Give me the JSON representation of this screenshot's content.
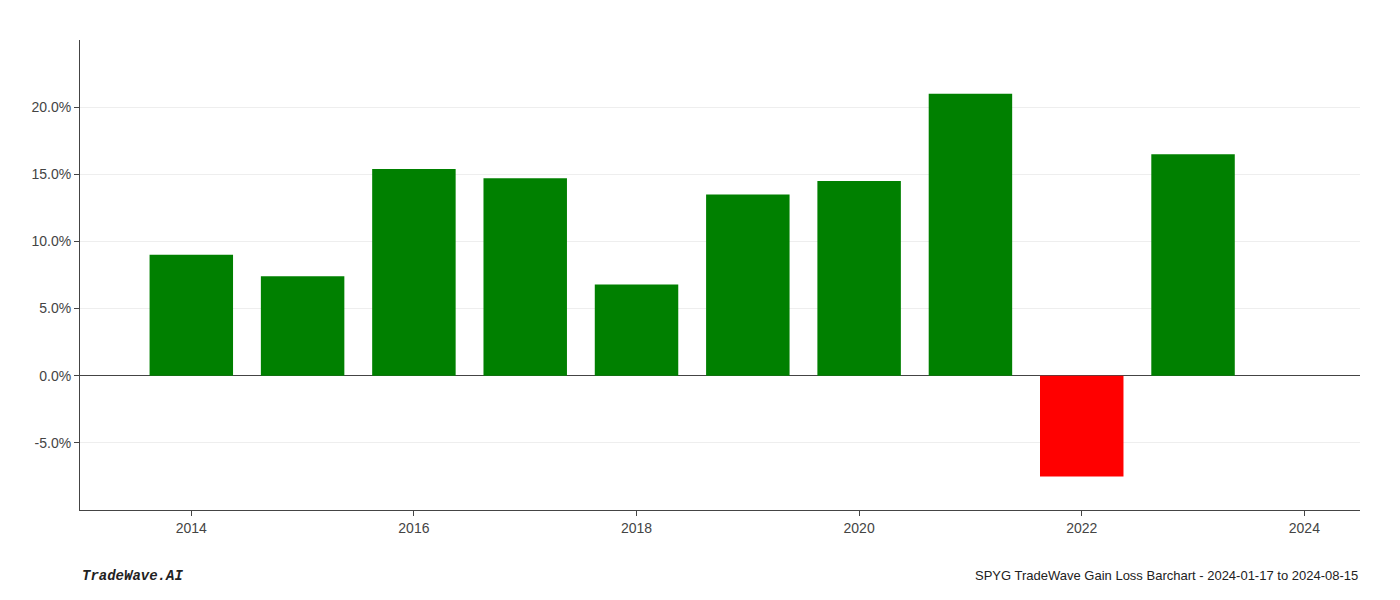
{
  "chart_data": {
    "type": "bar",
    "x": [
      2014,
      2015,
      2016,
      2017,
      2018,
      2019,
      2020,
      2021,
      2022,
      2023
    ],
    "values": [
      0.09,
      0.074,
      0.154,
      0.147,
      0.068,
      0.135,
      0.145,
      0.21,
      -0.075,
      0.165
    ],
    "colors": [
      "#008000",
      "#008000",
      "#008000",
      "#008000",
      "#008000",
      "#008000",
      "#008000",
      "#008000",
      "#ff0000",
      "#008000"
    ],
    "xlim": [
      2013.0,
      2024.5
    ],
    "xticks": [
      2014,
      2016,
      2018,
      2020,
      2022,
      2024
    ],
    "ylim": [
      -0.1,
      0.25
    ],
    "yticks": [
      {
        "value": -0.05,
        "label": "-5.0%"
      },
      {
        "value": 0.0,
        "label": "0.0%"
      },
      {
        "value": 0.05,
        "label": "5.0%"
      },
      {
        "value": 0.1,
        "label": "10.0%"
      },
      {
        "value": 0.15,
        "label": "15.0%"
      },
      {
        "value": 0.2,
        "label": "20.0%"
      }
    ],
    "grid": "y",
    "annotations": [
      "TradeWave.AI",
      "SPYG TradeWave Gain Loss Barchart - 2024-01-17 to 2024-08-15"
    ]
  }
}
